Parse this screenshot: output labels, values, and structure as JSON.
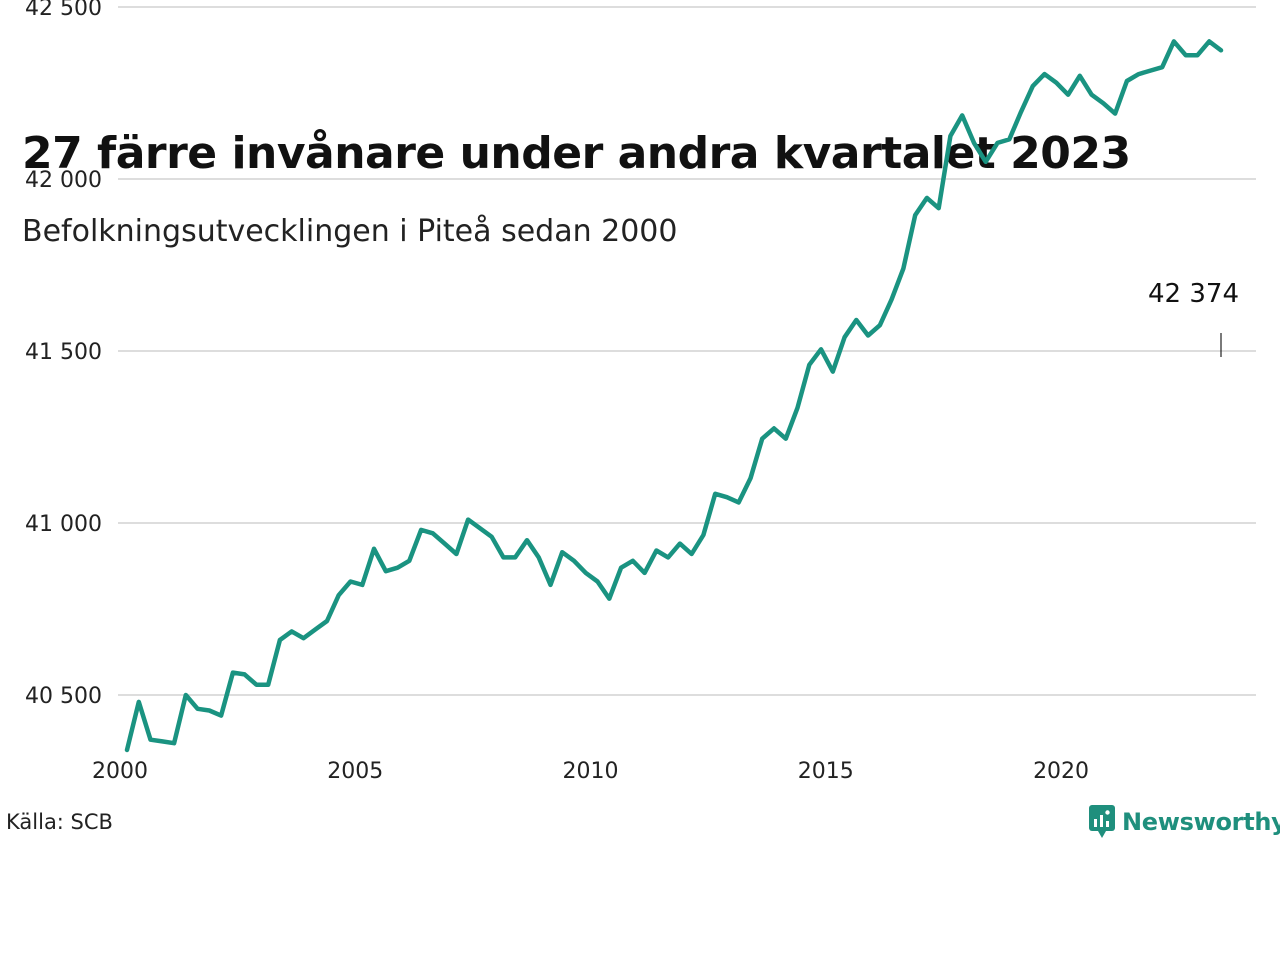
{
  "title": "27 färre invånare under andra kvartalet 2023",
  "subtitle": "Befolkningsutvecklingen i Piteå sedan 2000",
  "source": "Källa: SCB",
  "brand": {
    "name": "Newsworthy",
    "icon": "newsworthy-logo-icon"
  },
  "colors": {
    "line": "#1a9381",
    "grid": "#dddddd",
    "brand": "#1f8f7d"
  },
  "chart_data": {
    "type": "line",
    "title": "27 färre invånare under andra kvartalet 2023",
    "subtitle": "Befolkningsutvecklingen i Piteå sedan 2000",
    "xlabel": "",
    "ylabel": "",
    "xlim": [
      2000,
      2024.2
    ],
    "ylim": [
      40280,
      42630
    ],
    "x_ticks": [
      2000,
      2005,
      2010,
      2015,
      2020
    ],
    "x_tick_labels": [
      "2000",
      "2005",
      "2010",
      "2015",
      "2020"
    ],
    "y_ticks": [
      40500,
      41000,
      41500,
      42000,
      42500
    ],
    "y_tick_labels": [
      "40 500",
      "41 000",
      "41 500",
      "42 000",
      "42 500"
    ],
    "grid": true,
    "annotation": {
      "x": 2023.25,
      "y": 42374,
      "label": "42 374"
    },
    "series": [
      {
        "x": [
          2000.0,
          2000.25,
          2000.5,
          2000.75,
          2001.0,
          2001.25,
          2001.5,
          2001.75,
          2002.0,
          2002.25,
          2002.5,
          2002.75,
          2003.0,
          2003.25,
          2003.5,
          2003.75,
          2004.0,
          2004.25,
          2004.5,
          2004.75,
          2005.0,
          2005.25,
          2005.5,
          2005.75,
          2006.0,
          2006.25,
          2006.5,
          2006.75,
          2007.0,
          2007.25,
          2007.5,
          2007.75,
          2008.0,
          2008.25,
          2008.5,
          2008.75,
          2009.0,
          2009.25,
          2009.5,
          2009.75,
          2010.0,
          2010.25,
          2010.5,
          2010.75,
          2011.0,
          2011.25,
          2011.5,
          2011.75,
          2012.0,
          2012.25,
          2012.5,
          2012.75,
          2013.0,
          2013.25,
          2013.5,
          2013.75,
          2014.0,
          2014.25,
          2014.5,
          2014.75,
          2015.0,
          2015.25,
          2015.5,
          2015.75,
          2016.0,
          2016.25,
          2016.5,
          2016.75,
          2017.0,
          2017.25,
          2017.5,
          2017.75,
          2018.0,
          2018.25,
          2018.5,
          2018.75,
          2019.0,
          2019.25,
          2019.5,
          2019.75,
          2020.0,
          2020.25,
          2020.5,
          2020.75,
          2021.0,
          2021.25,
          2021.5,
          2021.75,
          2022.0,
          2022.25,
          2022.5,
          2022.75,
          2023.0,
          2023.25
        ],
        "values": [
          40340,
          40480,
          40370,
          40365,
          40360,
          40500,
          40460,
          40455,
          40440,
          40565,
          40560,
          40530,
          40530,
          40660,
          40685,
          40665,
          40690,
          40715,
          40790,
          40830,
          40820,
          40925,
          40860,
          40870,
          40890,
          40980,
          40970,
          40940,
          40910,
          41010,
          40985,
          40960,
          40900,
          40900,
          40950,
          40900,
          40820,
          40915,
          40890,
          40855,
          40830,
          40780,
          40870,
          40890,
          40855,
          40920,
          40900,
          40940,
          40910,
          40965,
          41085,
          41075,
          41060,
          41130,
          41245,
          41275,
          41245,
          41335,
          41460,
          41505,
          41440,
          41540,
          41590,
          41545,
          41575,
          41650,
          41740,
          41895,
          41945,
          41915,
          42125,
          42185,
          42105,
          42050,
          42105,
          42115,
          42195,
          42270,
          42305,
          42280,
          42245,
          42300,
          42245,
          42220,
          42190,
          42285,
          42305,
          42315,
          42325,
          42400,
          42360,
          42360,
          42400,
          42374
        ]
      }
    ]
  }
}
